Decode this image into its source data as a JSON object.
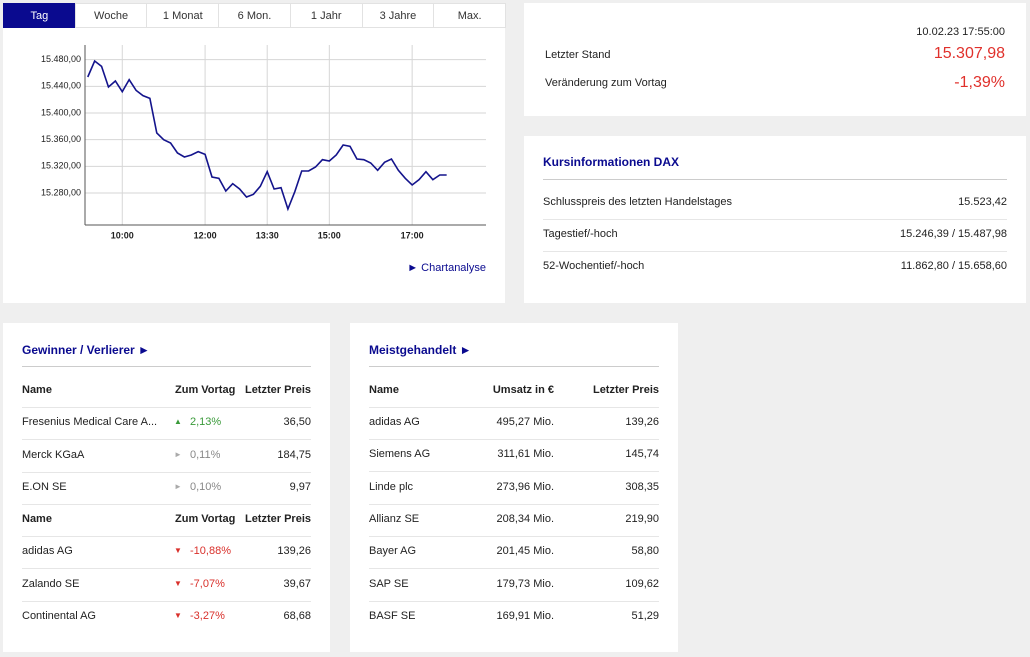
{
  "tabs": [
    "Tag",
    "Woche",
    "1 Monat",
    "6 Mon.",
    "1 Jahr",
    "3 Jahre",
    "Max."
  ],
  "chart_data": {
    "type": "line",
    "color": "#14148c",
    "grid": true,
    "x": [
      550,
      560,
      570,
      580,
      590,
      600,
      610,
      620,
      630,
      640,
      650,
      660,
      670,
      680,
      690,
      700,
      710,
      720,
      730,
      740,
      750,
      760,
      770,
      780,
      790,
      800,
      810,
      820,
      830,
      840,
      850,
      860,
      870,
      880,
      890,
      900,
      910,
      920,
      930,
      940,
      950,
      960,
      970,
      980,
      990,
      1000,
      1010,
      1020,
      1030,
      1040,
      1050,
      1060,
      1070
    ],
    "values": [
      15454,
      15478,
      15470,
      15439,
      15448,
      15432,
      15450,
      15434,
      15426,
      15422,
      15370,
      15360,
      15355,
      15340,
      15334,
      15337,
      15342,
      15338,
      15304,
      15302,
      15283,
      15294,
      15286,
      15274,
      15278,
      15290,
      15312,
      15286,
      15288,
      15256,
      15282,
      15313,
      15313,
      15319,
      15330,
      15328,
      15337,
      15352,
      15350,
      15331,
      15330,
      15325,
      15314,
      15326,
      15331,
      15314,
      15302,
      15292,
      15300,
      15312,
      15300,
      15307,
      15307
    ],
    "xlim": [
      546,
      1127
    ],
    "xticks": [
      {
        "value": 600,
        "label": "10:00"
      },
      {
        "value": 720,
        "label": "12:00"
      },
      {
        "value": 810,
        "label": "13:30"
      },
      {
        "value": 900,
        "label": "15:00"
      },
      {
        "value": 1020,
        "label": "17:00"
      }
    ],
    "ylim": [
      15232,
      15502
    ],
    "yticks": [
      {
        "value": 15280,
        "label": "15.280,00"
      },
      {
        "value": 15320,
        "label": "15.320,00"
      },
      {
        "value": 15360,
        "label": "15.360,00"
      },
      {
        "value": 15400,
        "label": "15.400,00"
      },
      {
        "value": 15440,
        "label": "15.440,00"
      },
      {
        "value": 15480,
        "label": "15.480,00"
      }
    ]
  },
  "link": "► Chartanalyse",
  "quote": {
    "timestamp": "10.02.23 17:55:00",
    "last_label": "Letzter Stand",
    "last_value": "15.307,98",
    "change_label": "Veränderung zum Vortag",
    "change_value": "-1,39%"
  },
  "info": {
    "title": "Kursinformationen DAX",
    "rows": [
      [
        "Schlusspreis des letzten Handelstages",
        "15.523,42"
      ],
      [
        "Tagestief/-hoch",
        "15.246,39 / 15.487,98"
      ],
      [
        "52-Wochentief/-hoch",
        "11.862,80 / 15.658,60"
      ]
    ]
  },
  "movers": {
    "title": "Gewinner / Verlierer ►",
    "tables": [
      {
        "header": [
          "Name",
          "Zum Vortag",
          "Letzter Preis"
        ],
        "rows": [
          [
            "Fresenius Medical Care A...",
            "2,13%",
            "36,50"
          ],
          [
            "Merck KGaA",
            "0,11%",
            "184,75"
          ],
          [
            "E.ON SE",
            "0,10%",
            "9,97"
          ]
        ]
      },
      {
        "header": [
          "Name",
          "Zum Vortag",
          "Letzter Preis"
        ],
        "rows": [
          [
            "adidas AG",
            "-10,88%",
            "139,26"
          ],
          [
            "Zalando SE",
            "-7,07%",
            "39,67"
          ],
          [
            "Continental AG",
            "-3,27%",
            "68,68"
          ]
        ]
      }
    ]
  },
  "most_traded": {
    "title": "Meistgehandelt ►",
    "header": [
      "Name",
      "Umsatz in €",
      "Letzter Preis"
    ],
    "rows": [
      [
        "adidas AG",
        "495,27 Mio.",
        "139,26"
      ],
      [
        "Siemens AG",
        "311,61 Mio.",
        "145,74"
      ],
      [
        "Linde plc",
        "273,96 Mio.",
        "308,35"
      ],
      [
        "Allianz SE",
        "208,34 Mio.",
        "219,90"
      ],
      [
        "Bayer AG",
        "201,45 Mio.",
        "58,80"
      ],
      [
        "SAP SE",
        "179,73 Mio.",
        "109,62"
      ],
      [
        "BASF SE",
        "169,91 Mio.",
        "51,29"
      ]
    ]
  }
}
